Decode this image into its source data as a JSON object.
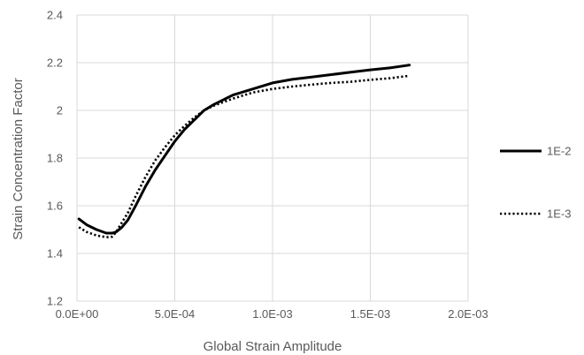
{
  "chart_data": {
    "type": "line",
    "title": "",
    "xlabel": "Global Strain Amplitude",
    "ylabel": "Strain Concentration Factor",
    "xlim": [
      0,
      0.002
    ],
    "ylim": [
      1.2,
      2.4
    ],
    "x_ticks": [
      0,
      0.0005,
      0.001,
      0.0015,
      0.002
    ],
    "x_tick_labels": [
      "0.0E+00",
      "5.0E-04",
      "1.0E-03",
      "1.5E-03",
      "2.0E-03"
    ],
    "y_ticks": [
      1.2,
      1.4,
      1.6,
      1.8,
      2.0,
      2.2,
      2.4
    ],
    "y_tick_labels": [
      "1.2",
      "1.4",
      "1.6",
      "1.8",
      "2",
      "2.2",
      "2.4"
    ],
    "grid": true,
    "legend_position": "right",
    "series": [
      {
        "name": "1E-2",
        "style": "solid",
        "color": "#000000",
        "x": [
          1e-05,
          5e-05,
          0.0001,
          0.00015,
          0.00018,
          0.0002,
          0.00023,
          0.00026,
          0.0003,
          0.00035,
          0.0004,
          0.00045,
          0.0005,
          0.00055,
          0.0006,
          0.00065,
          0.0007,
          0.00075,
          0.0008,
          0.0009,
          0.001,
          0.0011,
          0.0012,
          0.0013,
          0.0014,
          0.0015,
          0.0016,
          0.0017
        ],
        "y": [
          1.545,
          1.52,
          1.5,
          1.485,
          1.485,
          1.49,
          1.51,
          1.54,
          1.6,
          1.68,
          1.75,
          1.81,
          1.87,
          1.92,
          1.96,
          2.0,
          2.025,
          2.045,
          2.065,
          2.09,
          2.115,
          2.13,
          2.14,
          2.15,
          2.16,
          2.17,
          2.178,
          2.19
        ]
      },
      {
        "name": "1E-3",
        "style": "dotted",
        "color": "#000000",
        "x": [
          1e-05,
          5e-05,
          0.0001,
          0.00015,
          0.00018,
          0.0002,
          0.00023,
          0.00026,
          0.0003,
          0.00035,
          0.0004,
          0.00045,
          0.0005,
          0.00055,
          0.0006,
          0.00065,
          0.0007,
          0.00075,
          0.0008,
          0.0009,
          0.001,
          0.0011,
          0.0012,
          0.0013,
          0.0014,
          0.0015,
          0.0016,
          0.0017
        ],
        "y": [
          1.51,
          1.49,
          1.475,
          1.468,
          1.47,
          1.49,
          1.53,
          1.57,
          1.64,
          1.72,
          1.79,
          1.845,
          1.895,
          1.935,
          1.97,
          2.0,
          2.02,
          2.035,
          2.05,
          2.075,
          2.09,
          2.1,
          2.108,
          2.115,
          2.12,
          2.128,
          2.135,
          2.145
        ]
      }
    ]
  }
}
